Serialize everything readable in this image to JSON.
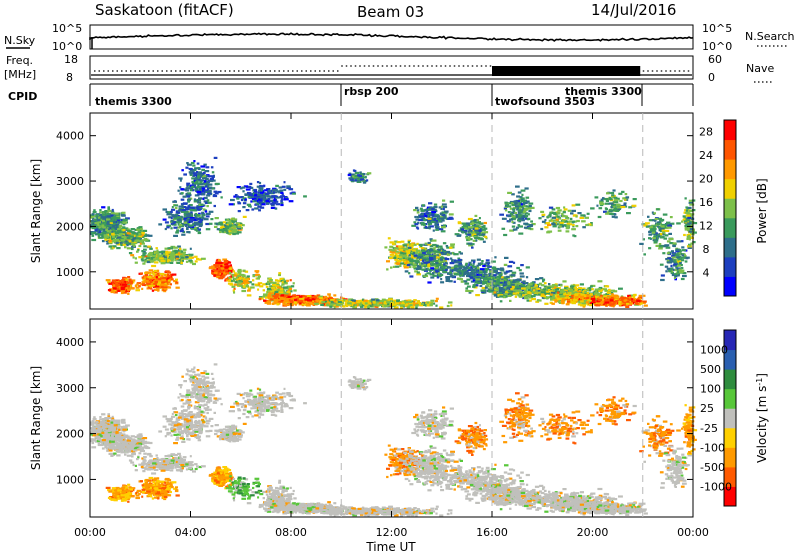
{
  "header": {
    "station": "Saskatoon (fitACF)",
    "beam": "Beam 03",
    "date": "14/Jul/2016"
  },
  "strips": {
    "nsky_label": "N.Sky",
    "nsky_ticks": [
      "10^5",
      "10^0"
    ],
    "nsearch_label": "N.Search",
    "nsearch_ticks": [
      "10^5",
      "10^0"
    ],
    "freq_label": "Freq.",
    "freq_unit": "[MHz]",
    "freq_ticks": [
      "18",
      "8"
    ],
    "nave_label": "Nave",
    "nave_ticks": [
      "60",
      "0"
    ],
    "cpid_label": "CPID"
  },
  "cpid_segments": [
    {
      "label": "themis 3300",
      "start_hour": 0
    },
    {
      "label": "rbsp 200",
      "start_hour": 10
    },
    {
      "label": "twofsound 3503",
      "start_hour": 16
    },
    {
      "label": "themis 3300",
      "start_hour": 18.9
    }
  ],
  "chart_data": [
    {
      "type": "heatmap",
      "panel": "power",
      "ylabel": "Slant Range [km]",
      "yticks": [
        "1000",
        "2000",
        "3000",
        "4000"
      ],
      "ylim": [
        180,
        4500
      ],
      "xlim_hours": [
        0,
        24
      ],
      "colorbar": {
        "label": "Power [dB]",
        "ticks": [
          "4",
          "8",
          "12",
          "16",
          "20",
          "24",
          "28"
        ],
        "range": [
          0,
          30
        ]
      },
      "vertical_markers_hours": [
        10,
        16,
        22
      ]
    },
    {
      "type": "heatmap",
      "panel": "velocity",
      "ylabel": "Slant Range [km]",
      "yticks": [
        "1000",
        "2000",
        "3000",
        "4000"
      ],
      "ylim": [
        180,
        4500
      ],
      "xlim_hours": [
        0,
        24
      ],
      "colorbar": {
        "label": "Velocity [m s^-1]",
        "ticks": [
          "1000",
          "500",
          "100",
          "25",
          "-25",
          "-100",
          "-500",
          "-1000"
        ],
        "ground_scatter": "grey"
      },
      "vertical_markers_hours": [
        10,
        16,
        22
      ]
    }
  ],
  "time_axis": {
    "label": "Time UT",
    "ticks": [
      "00:00",
      "04:00",
      "08:00",
      "12:00",
      "16:00",
      "20:00",
      "00:00"
    ]
  },
  "colors": {
    "power_scale": [
      "#0000ff",
      "#1d3fbf",
      "#2e6e8a",
      "#3a9a5c",
      "#7dc04a",
      "#f0d000",
      "#ff9900",
      "#ff5500",
      "#ff0000"
    ],
    "velocity_pos": [
      "#2727b5",
      "#2a5fb0",
      "#2e8c3e",
      "#58c73a"
    ],
    "velocity_neg": [
      "#ffd000",
      "#ff9a00",
      "#ff5a00",
      "#ff0000"
    ],
    "ground_scatter": "#c0c0bc"
  }
}
